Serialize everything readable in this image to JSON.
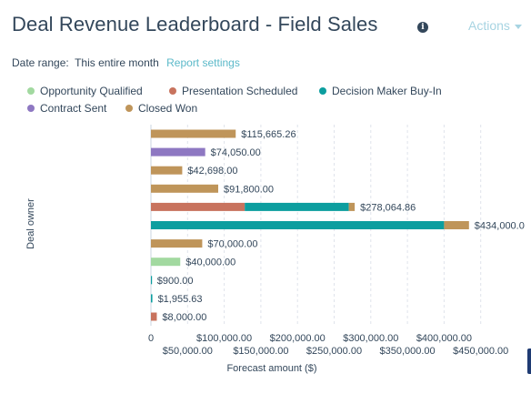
{
  "header": {
    "title": "Deal Revenue Leaderboard - Field Sales",
    "info_icon": "info-icon",
    "actions_label": "Actions"
  },
  "filters": {
    "date_range_label": "Date range:",
    "date_range_value": "This entire month",
    "report_settings_label": "Report settings"
  },
  "colors": {
    "opportunity_qualified": "#a2d9a0",
    "presentation_scheduled": "#c8735e",
    "decision_maker_buy_in": "#0c9e9f",
    "contract_sent": "#8e78c2",
    "closed_won": "#bf955a"
  },
  "chart_data": {
    "type": "bar",
    "orientation": "horizontal",
    "stacked": true,
    "xlabel": "Forecast amount ($)",
    "ylabel": "Deal owner",
    "xlim": [
      0,
      450000
    ],
    "x_ticks_upper": [
      "0",
      "$100,000.00",
      "$200,000.00",
      "$300,000.00",
      "$400,000.00"
    ],
    "x_ticks_lower": [
      "$50,000.00",
      "$150,000.00",
      "$250,000.00",
      "$350,000.00",
      "$450,000.00"
    ],
    "grid": true,
    "legend_position": "top",
    "series": [
      {
        "name": "Opportunity Qualified",
        "color_key": "opportunity_qualified",
        "values": [
          0,
          0,
          0,
          0,
          0,
          0,
          0,
          40000,
          0,
          0,
          0
        ]
      },
      {
        "name": "Presentation Scheduled",
        "color_key": "presentation_scheduled",
        "values": [
          0,
          0,
          0,
          0,
          128000,
          0,
          0,
          0,
          0,
          0,
          8000
        ]
      },
      {
        "name": "Decision Maker Buy-In",
        "color_key": "decision_maker_buy_in",
        "values": [
          0,
          0,
          0,
          0,
          142000,
          400000,
          0,
          0,
          900,
          1955.63,
          0
        ]
      },
      {
        "name": "Contract Sent",
        "color_key": "contract_sent",
        "values": [
          0,
          74050,
          0,
          0,
          0,
          0,
          0,
          0,
          0,
          0,
          0
        ]
      },
      {
        "name": "Closed Won",
        "color_key": "closed_won",
        "values": [
          115665.26,
          0,
          42698,
          91800,
          8064.86,
          34000,
          70000,
          0,
          0,
          0,
          0
        ]
      }
    ],
    "totals": [
      115665.26,
      74050,
      42698,
      91800,
      278064.86,
      434000,
      70000,
      40000,
      900,
      1955.63,
      8000
    ],
    "total_labels": [
      "$115,665.26",
      "$74,050.00",
      "$42,698.00",
      "$91,800.00",
      "$278,064.86",
      "$434,000.0",
      "$70,000.00",
      "$40,000.00",
      "$900.00",
      "$1,955.63",
      "$8,000.00"
    ]
  }
}
